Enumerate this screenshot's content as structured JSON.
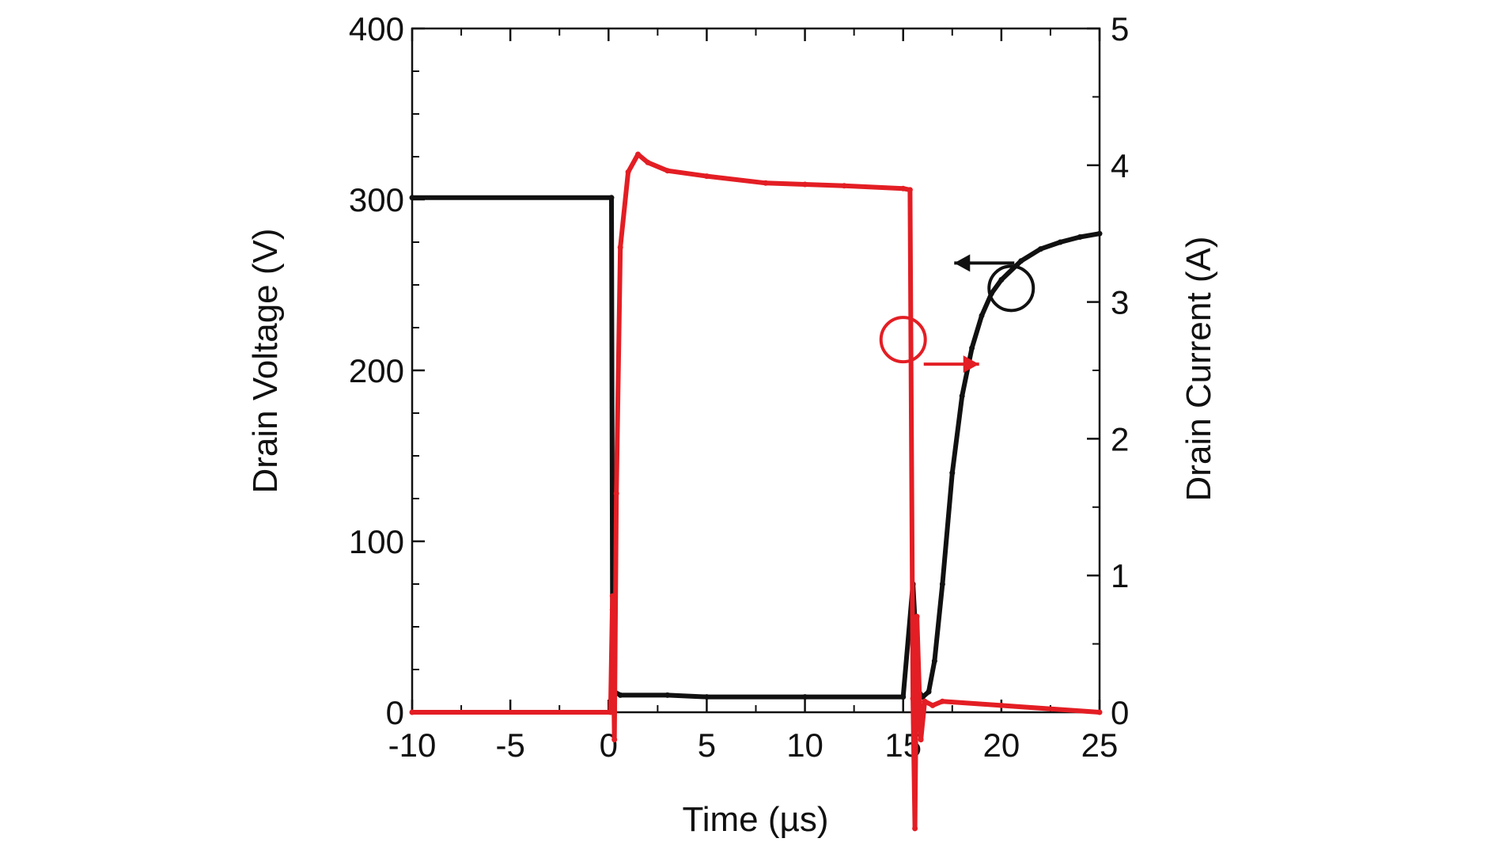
{
  "chart_data": {
    "type": "line",
    "title": "",
    "xlabel": "Time (µs)",
    "ylabel_left": "Drain Voltage (V)",
    "ylabel_right": "Drain Current (A)",
    "xlim": [
      -10,
      25
    ],
    "ylim_left": [
      0,
      400
    ],
    "ylim_right": [
      0,
      5
    ],
    "x_ticks": [
      -10,
      -5,
      0,
      5,
      10,
      15,
      20,
      25
    ],
    "x_tick_labels": [
      "-10",
      "-5",
      "0",
      "5",
      "10",
      "15",
      "20",
      "25"
    ],
    "y_left_ticks": [
      0,
      100,
      200,
      300,
      400
    ],
    "y_left_tick_labels": [
      "0",
      "100",
      "200",
      "300",
      "400"
    ],
    "y_right_ticks": [
      0,
      1,
      2,
      3,
      4,
      5
    ],
    "y_right_tick_labels": [
      "0",
      "1",
      "2",
      "3",
      "4",
      "5"
    ],
    "grid": false,
    "series": [
      {
        "name": "Drain Voltage",
        "axis": "left",
        "color": "#111111",
        "x": [
          -10,
          0.15,
          0.2,
          0.25,
          0.3,
          0.6,
          3,
          5,
          10,
          15,
          15.5,
          15.8,
          16.0,
          16.3,
          16.6,
          17.0,
          17.5,
          18.0,
          18.5,
          19.0,
          19.5,
          20.0,
          21.0,
          22.0,
          23.0,
          24.0,
          25.0
        ],
        "y": [
          301,
          301,
          60,
          70,
          12,
          10,
          10,
          9,
          9,
          9,
          75,
          12,
          9,
          12,
          30,
          75,
          140,
          185,
          213,
          232,
          245,
          253,
          264,
          271,
          275,
          278,
          280
        ]
      },
      {
        "name": "Drain Current",
        "axis": "right",
        "color": "#e31e24",
        "x": [
          -10,
          0.1,
          0.2,
          0.3,
          0.4,
          0.6,
          1.0,
          1.5,
          2,
          3,
          5,
          8,
          10,
          12,
          15,
          15.35,
          15.5,
          15.6,
          15.7,
          15.9,
          16.1,
          16.5,
          17,
          20,
          25
        ],
        "y": [
          0,
          0,
          0.85,
          -0.2,
          1.6,
          3.4,
          3.95,
          4.08,
          4.02,
          3.96,
          3.92,
          3.87,
          3.86,
          3.85,
          3.83,
          3.82,
          0.1,
          -0.85,
          0.7,
          -0.2,
          0.08,
          0.05,
          0.08,
          0.05,
          0
        ]
      }
    ],
    "annotations": [
      {
        "type": "circle-arrow",
        "series": "Drain Voltage",
        "at": {
          "x": 20.5,
          "y": 248
        },
        "arrow_direction": "left"
      },
      {
        "type": "circle-arrow",
        "series": "Drain Current",
        "at": {
          "x": 15,
          "y": 218
        },
        "arrow_direction": "right"
      }
    ]
  }
}
